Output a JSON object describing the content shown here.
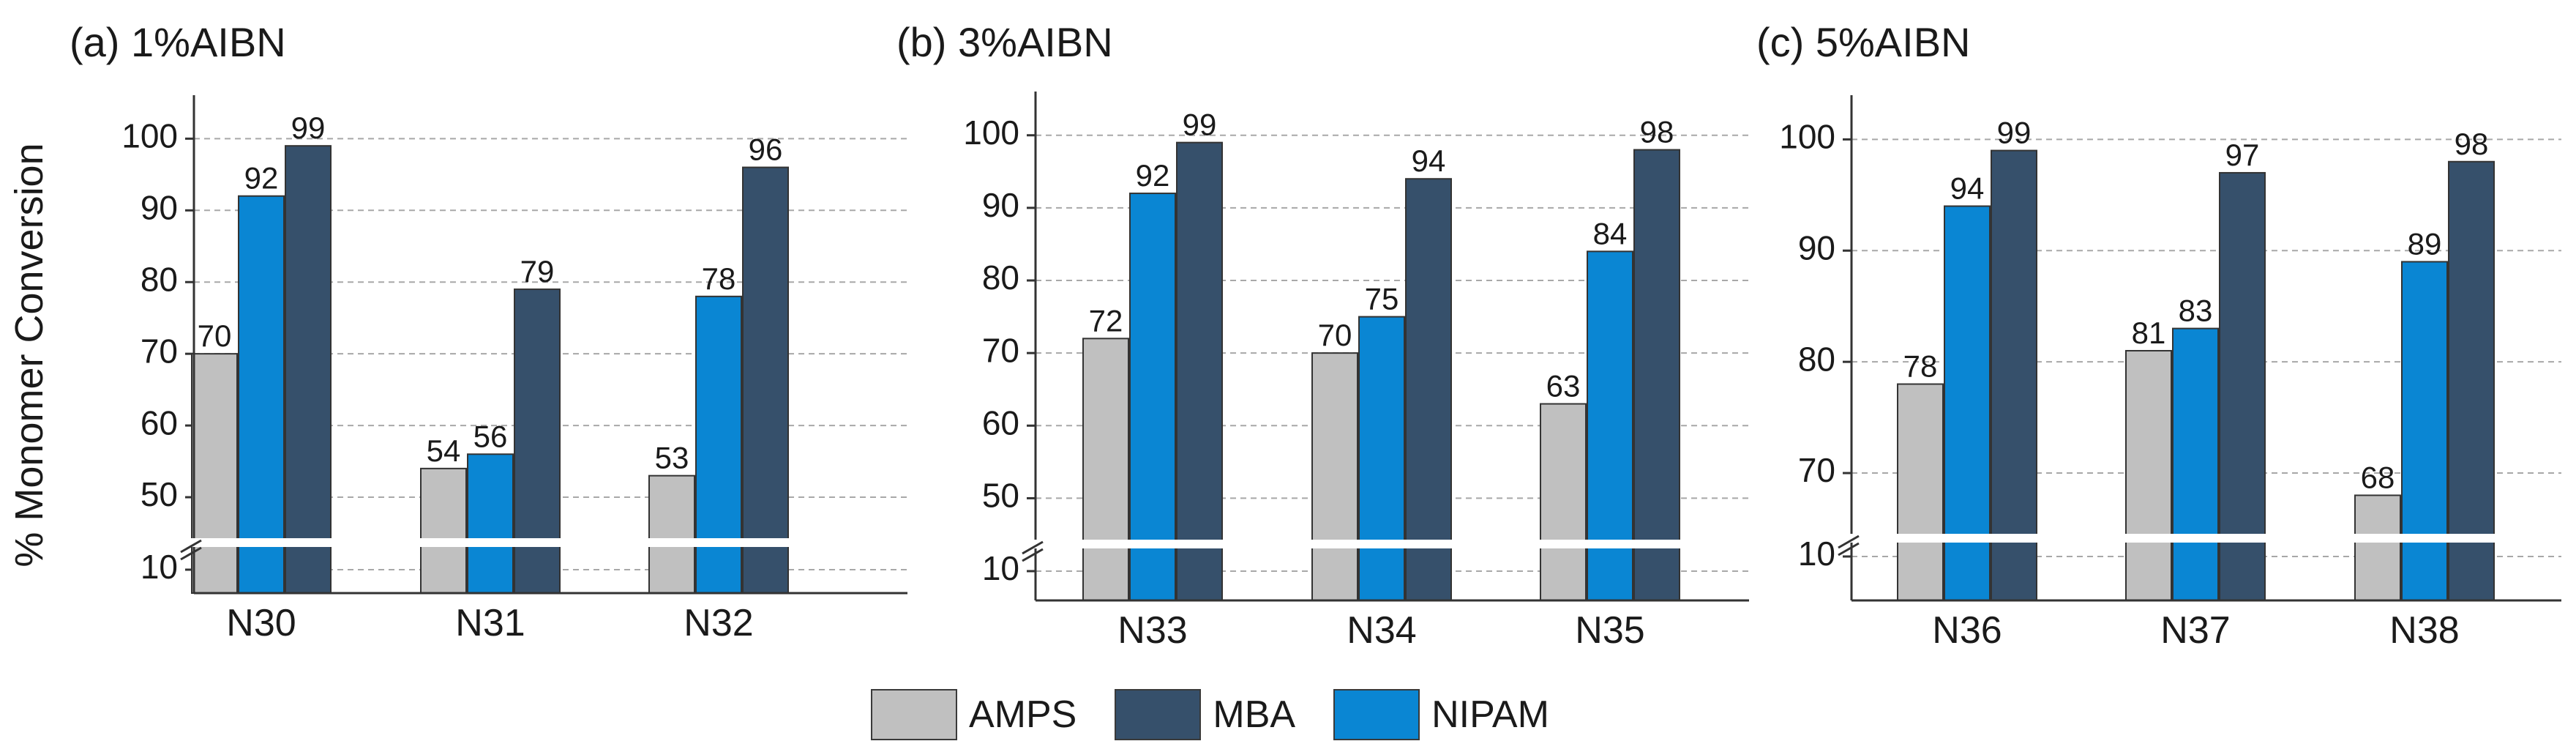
{
  "colors": {
    "AMPS": "#c0c0c0",
    "MBA": "#36506b",
    "NIPAM": "#0a86d3"
  },
  "legend": [
    {
      "name": "AMPS",
      "color": "#c0c0c0"
    },
    {
      "name": "MBA",
      "color": "#36506b"
    },
    {
      "name": "NIPAM",
      "color": "#0a86d3"
    }
  ],
  "chart_data": [
    {
      "type": "bar",
      "title": "(a) 1%AIBN",
      "ylabel": "% Monomer Conversion",
      "xlabel": "",
      "categories": [
        "N30",
        "N31",
        "N32"
      ],
      "series": [
        {
          "name": "AMPS",
          "values": [
            70,
            54,
            53
          ]
        },
        {
          "name": "NIPAM",
          "values": [
            92,
            56,
            78
          ]
        },
        {
          "name": "MBA",
          "values": [
            99,
            79,
            96
          ]
        }
      ],
      "yticks": [
        50,
        60,
        70,
        80,
        90,
        100
      ],
      "ylim": [
        45,
        103
      ],
      "broken_axis_tick": 10,
      "grid": true
    },
    {
      "type": "bar",
      "title": "(b) 3%AIBN",
      "ylabel": "",
      "xlabel": "",
      "categories": [
        "N33",
        "N34",
        "N35"
      ],
      "series": [
        {
          "name": "AMPS",
          "values": [
            72,
            70,
            63
          ]
        },
        {
          "name": "NIPAM",
          "values": [
            92,
            75,
            84
          ]
        },
        {
          "name": "MBA",
          "values": [
            99,
            94,
            98
          ]
        }
      ],
      "yticks": [
        50,
        60,
        70,
        80,
        90,
        100
      ],
      "ylim": [
        45,
        103
      ],
      "broken_axis_tick": 10,
      "grid": true
    },
    {
      "type": "bar",
      "title": "(c) 5%AIBN",
      "ylabel": "",
      "xlabel": "",
      "categories": [
        "N36",
        "N37",
        "N38"
      ],
      "series": [
        {
          "name": "AMPS",
          "values": [
            78,
            81,
            68
          ]
        },
        {
          "name": "NIPAM",
          "values": [
            94,
            83,
            89
          ]
        },
        {
          "name": "MBA",
          "values": [
            99,
            97,
            98
          ]
        }
      ],
      "yticks": [
        70,
        80,
        90,
        100
      ],
      "ylim": [
        65,
        102
      ],
      "broken_axis_tick": 10,
      "grid": true
    }
  ]
}
